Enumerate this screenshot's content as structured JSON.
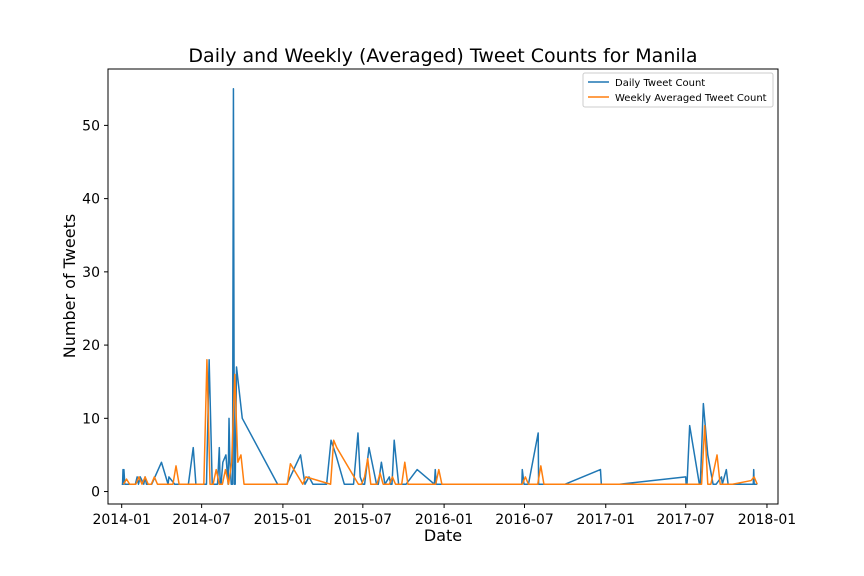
{
  "chart_data": {
    "type": "line",
    "title": "Daily and Weekly (Averaged) Tweet Counts for Manila",
    "xlabel": "Date",
    "ylabel": "Number of Tweets",
    "xlim": [
      "2013-12-01",
      "2018-01-26"
    ],
    "ylim": [
      -1.7,
      57.7
    ],
    "grid": false,
    "legend_position": "top-right",
    "x_ticks": [
      "2014-01",
      "2014-07",
      "2015-01",
      "2015-07",
      "2016-01",
      "2016-07",
      "2017-01",
      "2017-07",
      "2018-01"
    ],
    "y_ticks": [
      0,
      10,
      20,
      30,
      40,
      50
    ],
    "series": [
      {
        "name": "Daily Tweet Count",
        "color": "#1f77b4",
        "x": [
          "2014-01-01",
          "2014-01-03",
          "2014-01-04",
          "2014-01-05",
          "2014-01-06",
          "2014-01-08",
          "2014-01-20",
          "2014-01-28",
          "2014-02-01",
          "2014-02-05",
          "2014-02-08",
          "2014-02-12",
          "2014-02-20",
          "2014-02-23",
          "2014-02-26",
          "2014-03-01",
          "2014-03-10",
          "2014-04-01",
          "2014-04-16",
          "2014-04-18",
          "2014-05-01",
          "2014-06-01",
          "2014-06-12",
          "2014-06-18",
          "2014-06-24",
          "2014-07-01",
          "2014-07-04",
          "2014-07-07",
          "2014-07-12",
          "2014-07-18",
          "2014-07-25",
          "2014-08-06",
          "2014-08-10",
          "2014-08-12",
          "2014-08-14",
          "2014-08-18",
          "2014-08-25",
          "2014-08-30",
          "2014-09-01",
          "2014-09-03",
          "2014-09-06",
          "2014-09-09",
          "2014-09-11",
          "2014-09-13",
          "2014-09-15",
          "2014-09-18",
          "2014-10-01",
          "2014-12-20",
          "2015-01-01",
          "2015-01-10",
          "2015-02-10",
          "2015-02-20",
          "2015-03-01",
          "2015-03-10",
          "2015-04-10",
          "2015-04-20",
          "2015-05-01",
          "2015-05-20",
          "2015-06-10",
          "2015-06-20",
          "2015-06-25",
          "2015-07-01",
          "2015-07-05",
          "2015-07-15",
          "2015-08-01",
          "2015-08-05",
          "2015-08-12",
          "2015-08-20",
          "2015-08-30",
          "2015-09-02",
          "2015-09-05",
          "2015-09-10",
          "2015-09-20",
          "2015-10-01",
          "2015-10-05",
          "2015-10-07",
          "2015-11-01",
          "2015-12-10",
          "2015-12-12",
          "2015-12-14",
          "2015-12-20",
          "2016-02-10",
          "2016-03-01",
          "2016-06-25",
          "2016-06-26",
          "2016-06-30",
          "2016-07-10",
          "2016-08-01",
          "2016-08-02",
          "2016-08-04",
          "2016-08-06",
          "2016-08-20",
          "2016-09-01",
          "2016-10-01",
          "2016-12-20",
          "2016-12-22",
          "2017-02-01",
          "2017-07-01",
          "2017-07-02",
          "2017-07-04",
          "2017-07-10",
          "2017-08-01",
          "2017-08-03",
          "2017-08-05",
          "2017-08-10",
          "2017-08-20",
          "2017-09-01",
          "2017-09-03",
          "2017-09-08",
          "2017-09-20",
          "2017-09-22",
          "2017-10-01",
          "2017-10-05",
          "2017-10-10",
          "2017-12-01",
          "2017-12-02",
          "2017-12-03",
          "2017-12-04",
          "2017-12-10"
        ],
        "values": [
          1,
          1,
          3,
          1,
          3,
          1,
          1,
          1,
          1,
          2,
          1,
          2,
          1,
          2,
          1,
          1,
          1,
          4,
          1,
          2,
          1,
          1,
          6,
          1,
          1,
          1,
          1,
          1,
          1,
          18,
          1,
          1,
          6,
          1,
          1,
          4,
          5,
          1,
          10,
          4,
          1,
          1,
          55,
          1,
          1,
          17,
          10,
          1,
          1,
          1,
          5,
          1,
          2,
          1,
          1,
          7,
          5,
          1,
          1,
          8,
          2,
          1,
          1,
          6,
          1,
          1,
          4,
          1,
          2,
          1,
          1,
          7,
          1,
          1,
          1,
          1,
          3,
          1,
          3,
          1,
          1,
          1,
          1,
          1,
          3,
          1,
          1,
          8,
          1,
          1,
          1,
          1,
          1,
          1,
          3,
          1,
          1,
          2,
          1,
          1,
          9,
          1,
          1,
          4,
          12,
          5,
          1,
          1,
          1,
          2,
          1,
          3,
          1,
          1,
          1,
          3,
          1,
          1,
          1
        ]
      },
      {
        "name": "Weekly Averaged Tweet Count",
        "color": "#ff7f0e",
        "x": [
          "2014-01-05",
          "2014-01-12",
          "2014-01-19",
          "2014-01-26",
          "2014-02-02",
          "2014-02-09",
          "2014-02-16",
          "2014-02-23",
          "2014-03-02",
          "2014-03-09",
          "2014-03-16",
          "2014-03-23",
          "2014-03-30",
          "2014-04-06",
          "2014-04-13",
          "2014-04-20",
          "2014-04-27",
          "2014-05-04",
          "2014-05-11",
          "2014-05-18",
          "2014-05-25",
          "2014-06-01",
          "2014-06-08",
          "2014-06-15",
          "2014-06-22",
          "2014-06-29",
          "2014-07-06",
          "2014-07-13",
          "2014-07-20",
          "2014-07-27",
          "2014-08-03",
          "2014-08-10",
          "2014-08-17",
          "2014-08-24",
          "2014-08-31",
          "2014-09-07",
          "2014-09-14",
          "2014-09-21",
          "2014-09-28",
          "2014-10-05",
          "2015-01-11",
          "2015-01-18",
          "2015-02-15",
          "2015-02-22",
          "2015-04-19",
          "2015-04-26",
          "2015-05-03",
          "2015-06-21",
          "2015-06-28",
          "2015-07-05",
          "2015-07-12",
          "2015-07-19",
          "2015-07-26",
          "2015-08-02",
          "2015-08-09",
          "2015-08-16",
          "2015-08-23",
          "2015-08-30",
          "2015-09-06",
          "2015-09-13",
          "2015-09-20",
          "2015-09-27",
          "2015-10-04",
          "2015-10-11",
          "2015-10-18",
          "2015-11-01",
          "2015-12-06",
          "2015-12-13",
          "2015-12-20",
          "2015-12-27",
          "2016-01-10",
          "2016-02-14",
          "2016-03-06",
          "2016-04-10",
          "2016-06-26",
          "2016-07-03",
          "2016-07-10",
          "2016-07-31",
          "2016-08-07",
          "2016-08-14",
          "2016-08-21",
          "2016-09-04",
          "2016-10-02",
          "2016-10-23",
          "2017-03-05",
          "2017-07-02",
          "2017-07-09",
          "2017-07-16",
          "2017-07-23",
          "2017-07-30",
          "2017-08-06",
          "2017-08-13",
          "2017-08-20",
          "2017-08-27",
          "2017-09-03",
          "2017-09-10",
          "2017-09-17",
          "2017-09-24",
          "2017-10-01",
          "2017-10-08",
          "2017-10-15",
          "2017-11-26",
          "2017-12-03",
          "2017-12-10"
        ],
        "values": [
          1,
          1.7,
          1,
          1,
          1,
          2,
          1,
          2,
          1,
          1,
          2,
          1,
          1,
          1,
          1,
          1,
          1,
          3.5,
          1,
          1,
          1,
          1,
          1,
          1,
          1,
          1,
          1,
          18,
          1,
          1,
          3,
          1,
          1,
          3,
          1,
          4,
          16,
          4,
          5,
          1,
          1,
          3.8,
          1,
          2,
          1,
          7,
          6,
          1,
          1,
          2,
          4.5,
          1,
          1,
          1,
          2.5,
          1,
          1,
          1,
          2,
          1,
          1,
          1,
          4,
          1,
          1,
          1,
          1,
          1,
          3,
          1,
          1,
          1,
          1,
          1,
          1,
          2,
          1,
          1,
          3.5,
          1,
          1,
          1,
          1,
          1,
          1,
          1,
          1,
          1,
          1,
          1,
          1,
          9,
          1,
          1,
          3,
          5,
          1,
          1,
          1,
          1,
          1,
          1.5,
          2,
          1
        ]
      }
    ]
  }
}
